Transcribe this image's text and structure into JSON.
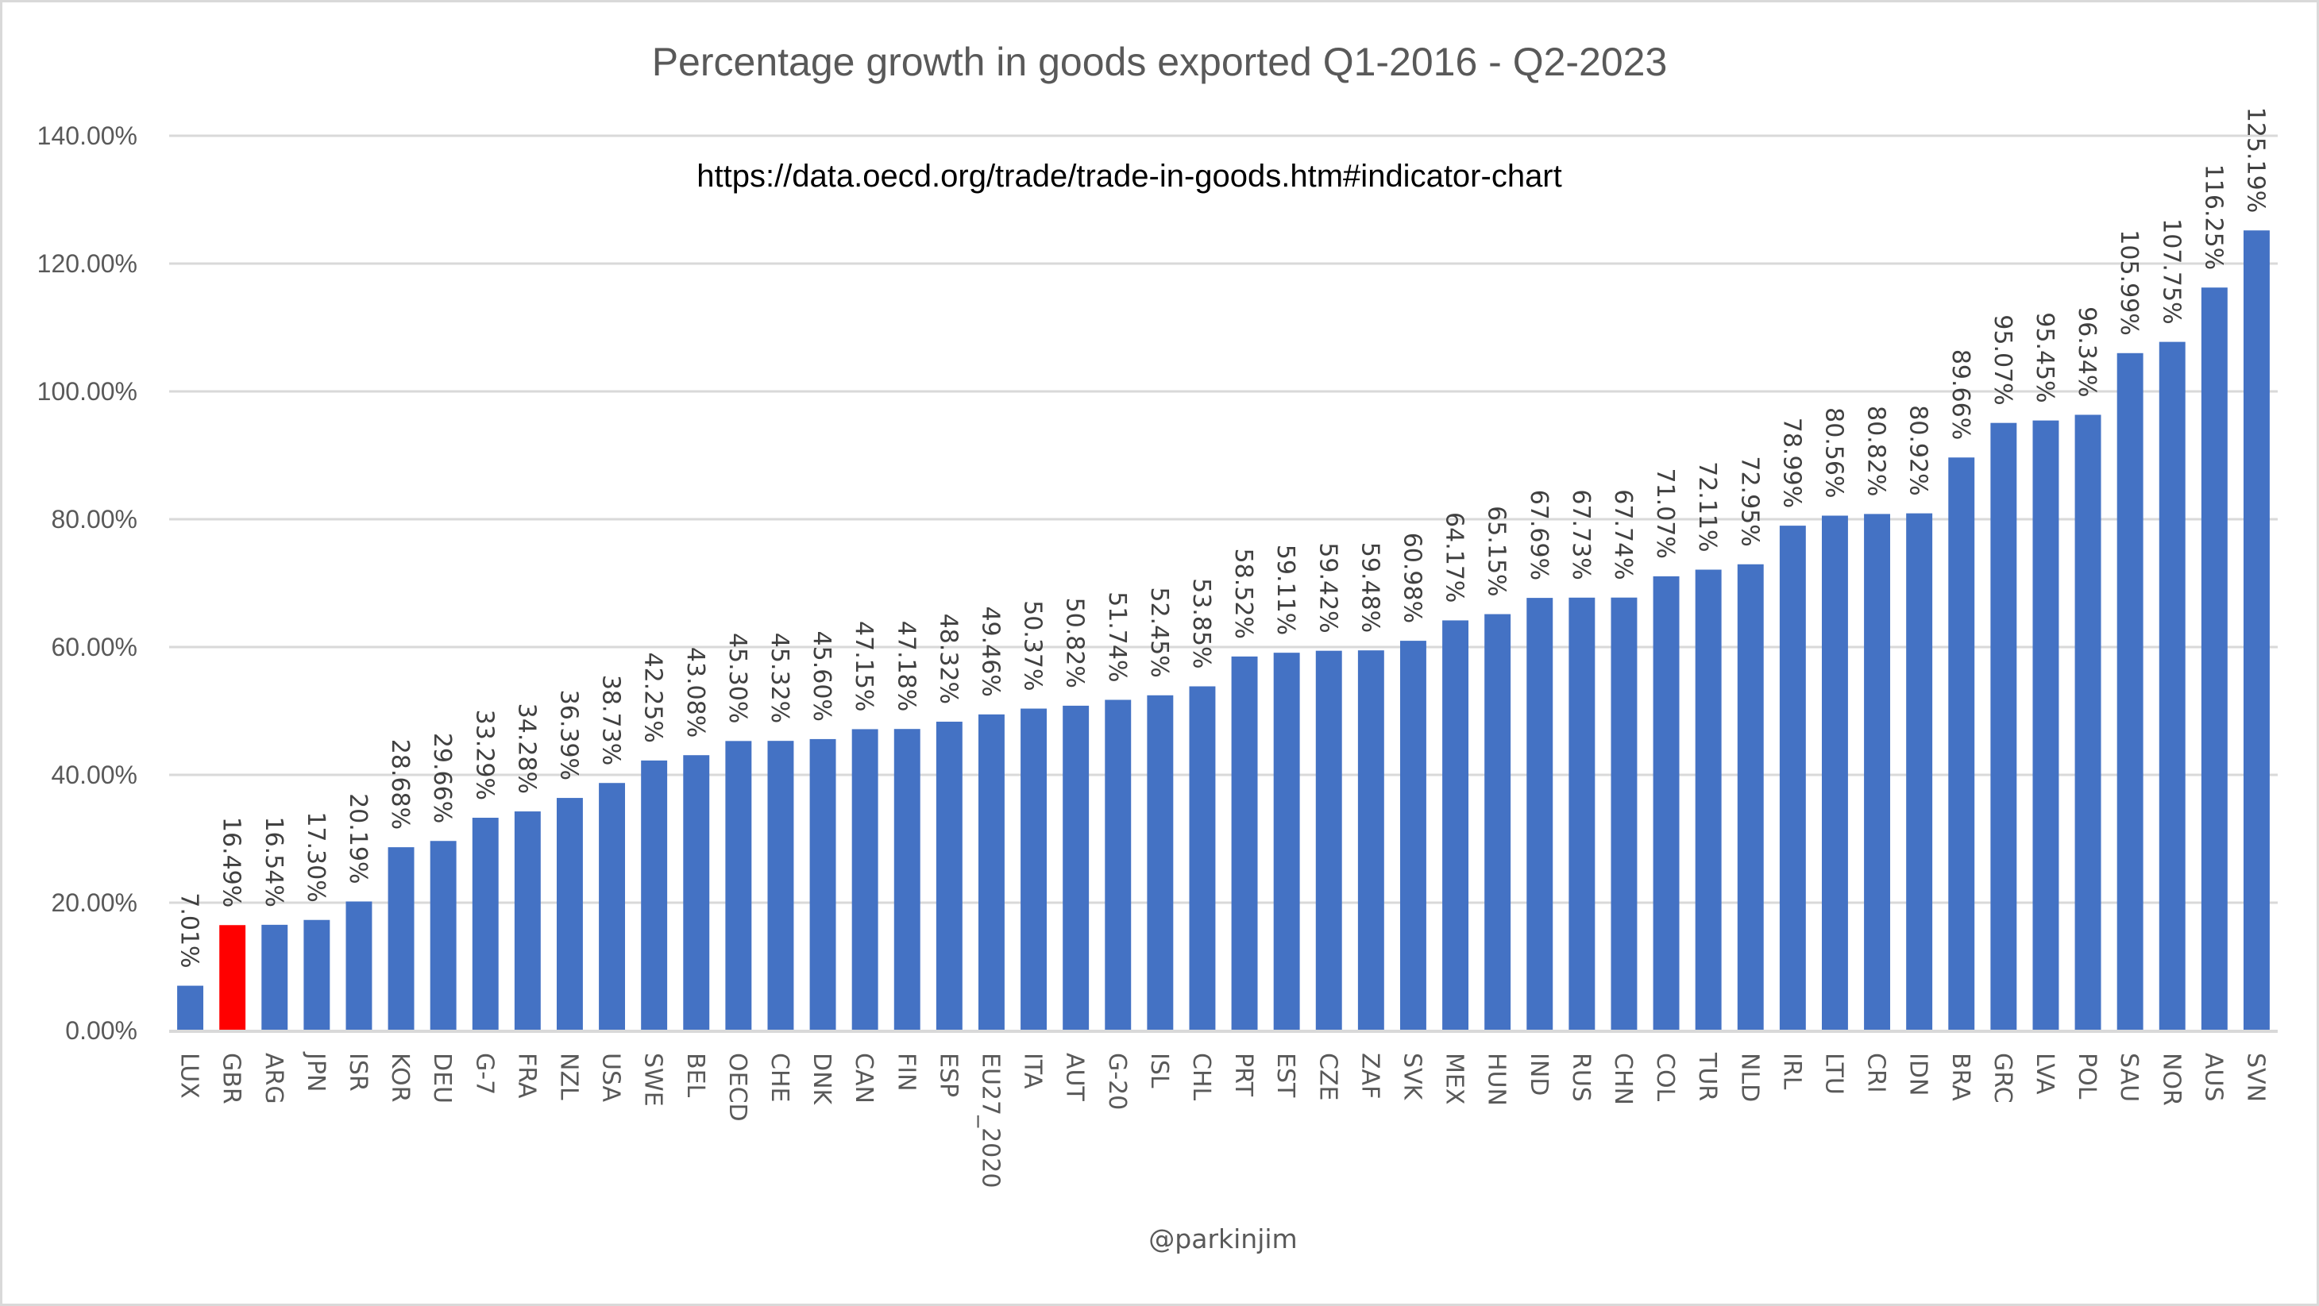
{
  "chart_data": {
    "type": "bar",
    "title": "Percentage growth in goods exported Q1-2016 - Q2-2023",
    "annotation": "https://data.oecd.org/trade/trade-in-goods.htm#indicator-chart",
    "footer": "@parkinjim",
    "xlabel": "",
    "ylabel": "",
    "ylim": [
      0,
      140
    ],
    "yticks": [
      0,
      20,
      40,
      60,
      80,
      100,
      120,
      140
    ],
    "ytick_labels": [
      "0.00%",
      "20.00%",
      "40.00%",
      "60.00%",
      "80.00%",
      "100.00%",
      "120.00%",
      "140.00%"
    ],
    "grid": true,
    "legend": "none",
    "colors": {
      "default": "#4472C4",
      "highlight": "#FF0000"
    },
    "highlight_category": "GBR",
    "categories": [
      "LUX",
      "GBR",
      "ARG",
      "JPN",
      "ISR",
      "KOR",
      "DEU",
      "G-7",
      "FRA",
      "NZL",
      "USA",
      "SWE",
      "BEL",
      "OECD",
      "CHE",
      "DNK",
      "CAN",
      "FIN",
      "ESP",
      "EU27_2020",
      "ITA",
      "AUT",
      "G-20",
      "ISL",
      "CHL",
      "PRT",
      "EST",
      "CZE",
      "ZAF",
      "SVK",
      "MEX",
      "HUN",
      "IND",
      "RUS",
      "CHN",
      "COL",
      "TUR",
      "NLD",
      "IRL",
      "LTU",
      "CRI",
      "IDN",
      "BRA",
      "GRC",
      "LVA",
      "POL",
      "SAU",
      "NOR",
      "AUS",
      "SVN"
    ],
    "values": [
      7.01,
      16.49,
      16.54,
      17.3,
      20.19,
      28.68,
      29.66,
      33.29,
      34.28,
      36.39,
      38.73,
      42.25,
      43.08,
      45.3,
      45.32,
      45.6,
      47.15,
      47.18,
      48.32,
      49.46,
      50.37,
      50.82,
      51.74,
      52.45,
      53.85,
      58.52,
      59.11,
      59.42,
      59.48,
      60.98,
      64.17,
      65.15,
      67.69,
      67.73,
      67.74,
      71.07,
      72.11,
      72.95,
      78.99,
      80.56,
      80.82,
      80.92,
      89.66,
      95.07,
      95.45,
      96.34,
      105.99,
      107.75,
      116.25,
      125.19
    ],
    "value_labels": [
      "7.01%",
      "16.49%",
      "16.54%",
      "17.30%",
      "20.19%",
      "28.68%",
      "29.66%",
      "33.29%",
      "34.28%",
      "36.39%",
      "38.73%",
      "42.25%",
      "43.08%",
      "45.30%",
      "45.32%",
      "45.60%",
      "47.15%",
      "47.18%",
      "48.32%",
      "49.46%",
      "50.37%",
      "50.82%",
      "51.74%",
      "52.45%",
      "53.85%",
      "58.52%",
      "59.11%",
      "59.42%",
      "59.48%",
      "60.98%",
      "64.17%",
      "65.15%",
      "67.69%",
      "67.73%",
      "67.74%",
      "71.07%",
      "72.11%",
      "72.95%",
      "78.99%",
      "80.56%",
      "80.82%",
      "80.92%",
      "89.66%",
      "95.07%",
      "95.45%",
      "96.34%",
      "105.99%",
      "107.75%",
      "116.25%",
      "125.19%"
    ]
  }
}
